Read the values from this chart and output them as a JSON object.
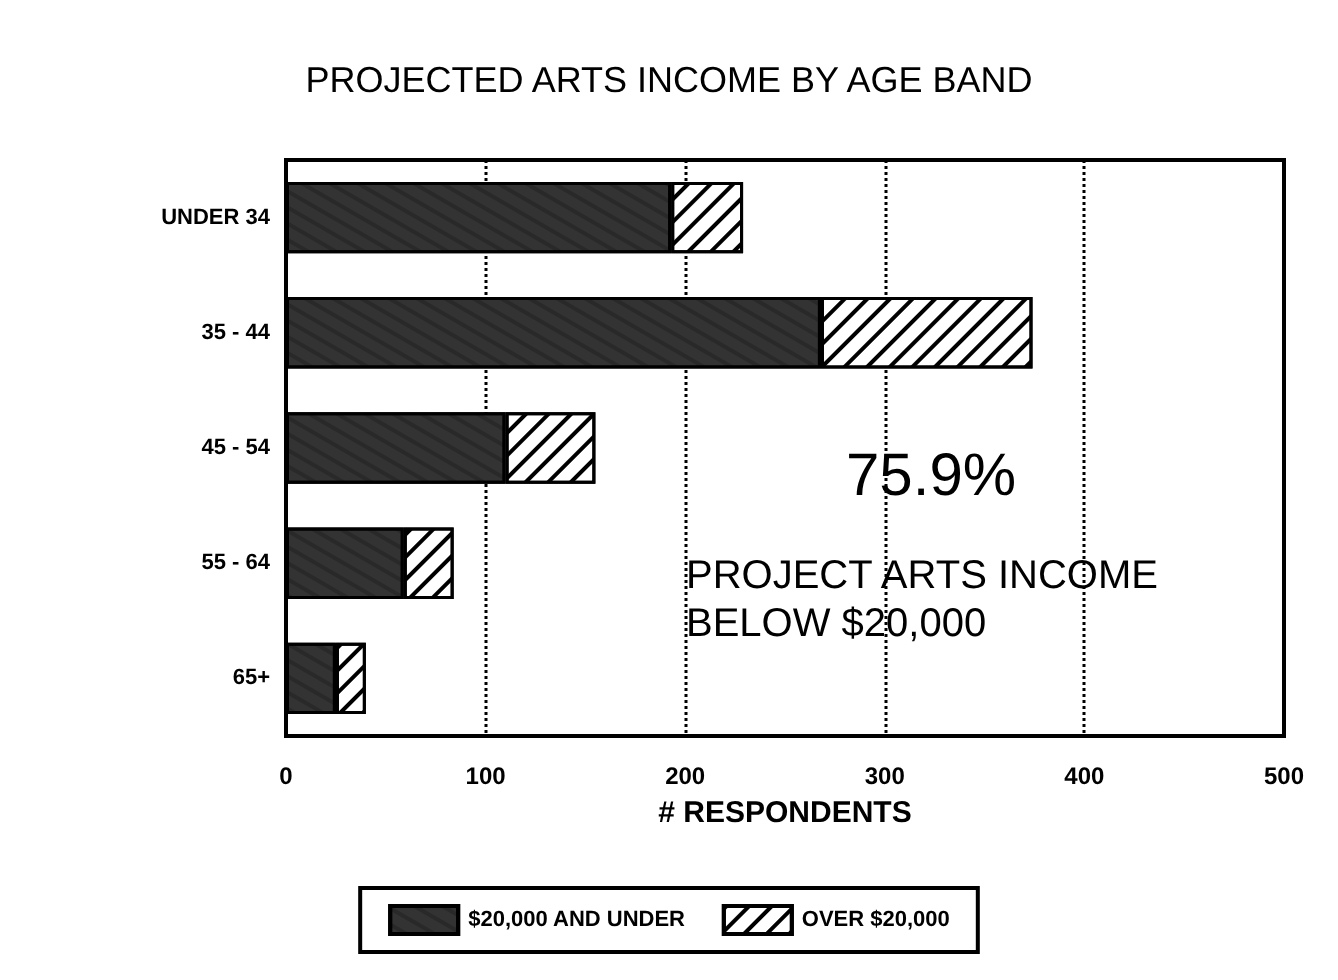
{
  "chart_data": {
    "type": "bar",
    "orientation": "horizontal",
    "stacked": true,
    "title": "PROJECTED ARTS INCOME BY AGE BAND",
    "xlabel": "# RESPONDENTS",
    "categories": [
      "UNDER 34",
      "35 - 44",
      "45 - 54",
      "55 - 64",
      "65+"
    ],
    "series": [
      {
        "name": "$20,000 AND UNDER",
        "color": "#333333",
        "values": [
          193,
          268,
          110,
          59,
          25
        ]
      },
      {
        "name": "OVER $20,000",
        "color": "#ffffff",
        "values": [
          36,
          106,
          45,
          25,
          15
        ]
      }
    ],
    "xlim": [
      0,
      500
    ],
    "xticks": [
      0,
      100,
      200,
      300,
      400,
      500
    ],
    "grid": "x",
    "legend": "bottom",
    "annotations": [
      "75.9%",
      "PROJECT ARTS INCOME\nBELOW $20,000"
    ]
  }
}
